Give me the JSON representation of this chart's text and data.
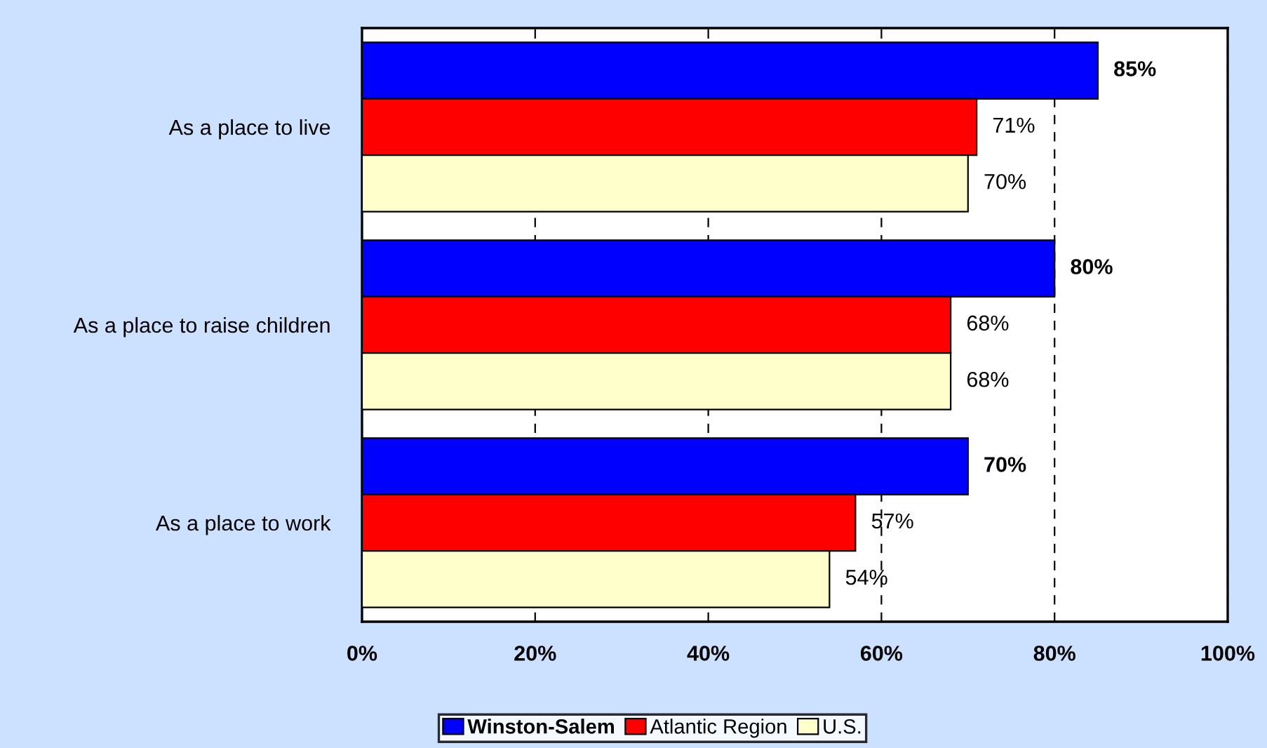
{
  "chart_data": {
    "type": "bar",
    "orientation": "horizontal",
    "categories": [
      "As a place to live",
      "As a place to raise children",
      "As a place to work"
    ],
    "series": [
      {
        "name": "Winston-Salem",
        "color": "#0000ff",
        "values": [
          85,
          80,
          70
        ],
        "value_labels": [
          "85%",
          "80%",
          "70%"
        ]
      },
      {
        "name": "Atlantic Region",
        "color": "#ff0000",
        "values": [
          71,
          68,
          57
        ],
        "value_labels": [
          "71%",
          "68%",
          "57%"
        ]
      },
      {
        "name": "U.S.",
        "color": "#ffffcc",
        "values": [
          70,
          68,
          54
        ],
        "value_labels": [
          "70%",
          "68%",
          "54%"
        ]
      }
    ],
    "xlim": [
      0,
      100
    ],
    "xticks": [
      {
        "value": 0,
        "label": "0%"
      },
      {
        "value": 20,
        "label": "20%"
      },
      {
        "value": 40,
        "label": "40%"
      },
      {
        "value": 60,
        "label": "60%"
      },
      {
        "value": 80,
        "label": "80%"
      },
      {
        "value": 100,
        "label": "100%"
      }
    ],
    "grid": "x",
    "legend": "bottom"
  }
}
